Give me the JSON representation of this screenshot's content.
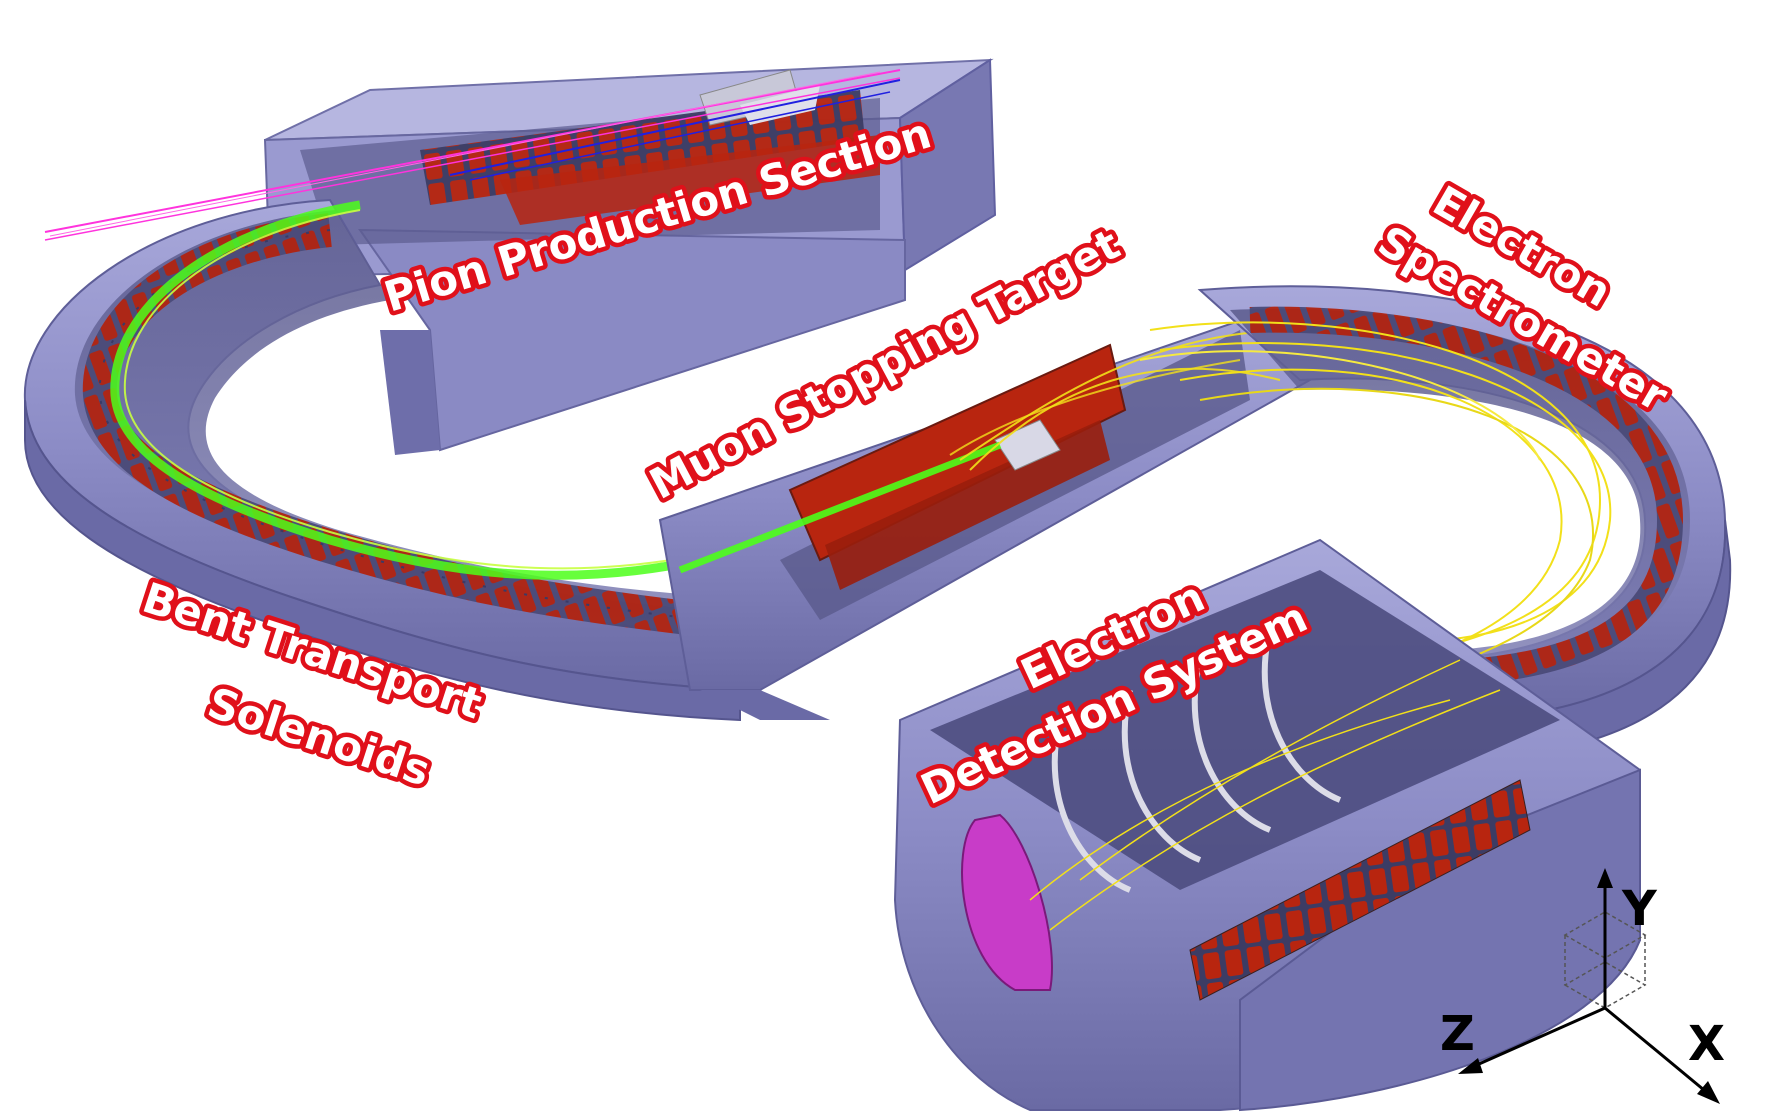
{
  "labels": {
    "pion_production": "Pion Production Section",
    "muon_target": "Muon Stopping Target",
    "electron_spectrometer_1": "Electron",
    "electron_spectrometer_2": "Spectrometer",
    "bent_transport_1": "Bent Transport",
    "bent_transport_2": "Solenoids",
    "electron_detection_1": "Electron",
    "electron_detection_2": "Detection System"
  },
  "axes": {
    "y": "Y",
    "z": "Z",
    "x": "X"
  },
  "colors": {
    "shield": "#8f8fc8",
    "shield_dark": "#6c6ca8",
    "shield_light": "#b4b4e0",
    "coil": "#b8250f",
    "track_green": "#4cff1a",
    "track_yellow": "#f2e01a",
    "track_magenta": "#ff33dd",
    "track_blue": "#2020e0",
    "label_glow": "#e0101a",
    "detector_magenta": "#c83cc8"
  }
}
